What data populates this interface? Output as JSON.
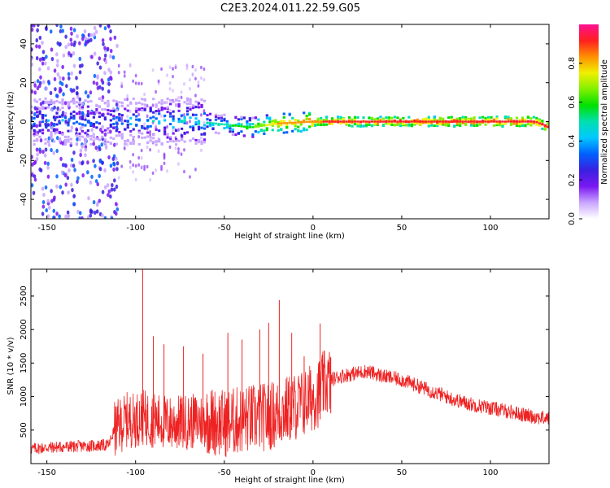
{
  "title": "C2E3.2024.011.22.59.G05",
  "colors": {
    "snr_line": "#ee2222",
    "frame": "#000000",
    "colormap": [
      "#ffffff",
      "#c9a6ff",
      "#7a18f2",
      "#3a20e0",
      "#0060ff",
      "#00c8ff",
      "#00e0b0",
      "#00e000",
      "#80f000",
      "#f0f000",
      "#ff9000",
      "#ff2020",
      "#ff1090"
    ]
  },
  "chart_data": [
    {
      "type": "heatmap",
      "xlabel": "Height of straight line (km)",
      "ylabel": "Frequency (Hz)",
      "xlim": [
        -159,
        133
      ],
      "ylim": [
        -50,
        50
      ],
      "xticks": [
        -150,
        -100,
        -50,
        0,
        50,
        100
      ],
      "yticks": [
        -40,
        -20,
        0,
        20,
        40
      ],
      "colorbar": {
        "label": "Normalized spectral amplitude",
        "range": [
          0,
          1
        ],
        "ticks": [
          "0.0",
          "0.2",
          "0.4",
          "0.6",
          "0.8"
        ]
      },
      "ridge": {
        "description_points": [
          {
            "x": -115,
            "freq": 0,
            "amp": 0.35
          },
          {
            "x": -65,
            "freq": 0,
            "amp": 0.45
          },
          {
            "x": -35,
            "freq": -3,
            "amp": 0.6
          },
          {
            "x": -20,
            "freq": -1,
            "amp": 0.8
          },
          {
            "x": 0,
            "freq": 0,
            "amp": 0.85
          },
          {
            "x": 10,
            "freq": 0,
            "amp": 0.9
          },
          {
            "x": 125,
            "freq": 0,
            "amp": 0.95
          },
          {
            "x": 133,
            "freq": -3,
            "amp": 0.95
          }
        ]
      }
    },
    {
      "type": "line",
      "xlabel": "Height of straight line (km)",
      "ylabel": "SNR (10 * v/v)",
      "xlim": [
        -159,
        133
      ],
      "ylim": [
        0,
        2900
      ],
      "xticks": [
        -150,
        -100,
        -50,
        0,
        50,
        100
      ],
      "yticks": [
        500,
        1000,
        1500,
        2000,
        2500
      ],
      "series": [
        {
          "x": [
            -159,
            -150,
            -140,
            -130,
            -120,
            -115,
            -112,
            -105,
            -100,
            -97,
            -95,
            -90,
            -80,
            -70,
            -60,
            -50,
            -40,
            -33,
            -25,
            -20,
            -15,
            -10,
            -5,
            0,
            3,
            5,
            10,
            15,
            20,
            25,
            30,
            40,
            50,
            60,
            70,
            80,
            90,
            100,
            110,
            120,
            130,
            133
          ],
          "y": [
            220,
            240,
            250,
            260,
            270,
            280,
            500,
            650,
            650,
            700,
            680,
            650,
            600,
            620,
            650,
            600,
            650,
            680,
            700,
            750,
            800,
            850,
            900,
            1000,
            1050,
            1150,
            1250,
            1300,
            1330,
            1350,
            1380,
            1300,
            1250,
            1150,
            1050,
            950,
            880,
            830,
            780,
            720,
            680,
            680
          ],
          "spikes": [
            {
              "x": -96,
              "y": 2900
            },
            {
              "x": -90,
              "y": 1900
            },
            {
              "x": -84,
              "y": 1780
            },
            {
              "x": -73,
              "y": 1750
            },
            {
              "x": -62,
              "y": 1640
            },
            {
              "x": -48,
              "y": 1950
            },
            {
              "x": -40,
              "y": 1850
            },
            {
              "x": -30,
              "y": 2000
            },
            {
              "x": -25,
              "y": 2100
            },
            {
              "x": -19,
              "y": 2440
            },
            {
              "x": -12,
              "y": 1950
            },
            {
              "x": -5,
              "y": 1600
            },
            {
              "x": 4,
              "y": 2090
            },
            {
              "x": 10,
              "y": 1580
            }
          ]
        }
      ]
    }
  ]
}
